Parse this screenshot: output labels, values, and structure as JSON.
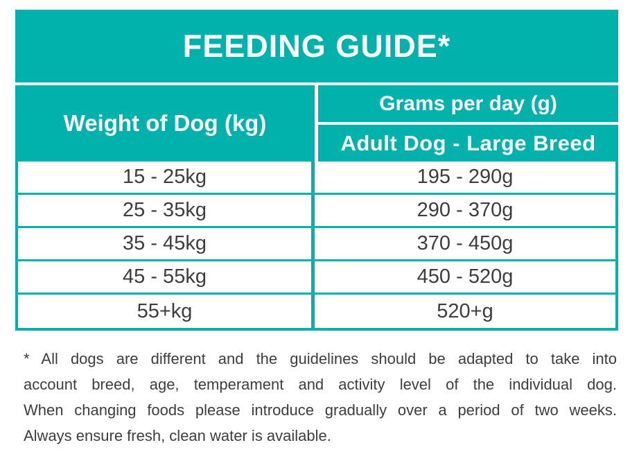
{
  "colors": {
    "teal": "#00b2ab",
    "text": "#3d3d3d"
  },
  "title": "FEEDING GUIDE*",
  "table": {
    "weight_header": "Weight of Dog (kg)",
    "grams_header": "Grams per day (g)",
    "breed_header": "Adult Dog - Large Breed",
    "rows": [
      {
        "weight": "15 - 25kg",
        "grams": "195 - 290g"
      },
      {
        "weight": "25 - 35kg",
        "grams": "290 - 370g"
      },
      {
        "weight": "35 - 45kg",
        "grams": "370 - 450g"
      },
      {
        "weight": "45 - 55kg",
        "grams": "450 - 520g"
      },
      {
        "weight": "55+kg",
        "grams": "520+g"
      }
    ]
  },
  "footnote_lines": [
    "* All dogs are different and the guidelines should be adapted to take into",
    "account breed, age, temperament and activity level of the individual dog.",
    "When changing foods please introduce gradually over a period of two weeks.",
    "Always ensure fresh, clean water is available."
  ]
}
